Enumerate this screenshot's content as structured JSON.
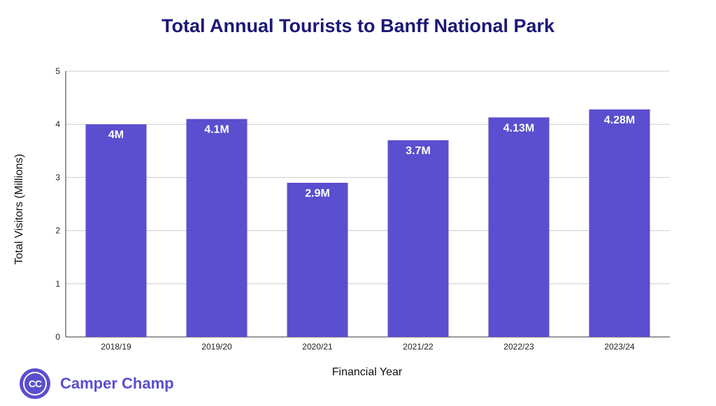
{
  "chart_data": {
    "type": "bar",
    "title": "Total Annual Tourists to Banff National Park",
    "xlabel": "Financial Year",
    "ylabel": "Total Visitors (Millions)",
    "categories": [
      "2018/19",
      "2019/20",
      "2020/21",
      "2021/22",
      "2022/23",
      "2023/24"
    ],
    "values": [
      4,
      4.1,
      2.9,
      3.7,
      4.13,
      4.28
    ],
    "data_labels": [
      "4M",
      "4.1M",
      "2.9M",
      "3.7M",
      "4.13M",
      "4.28M"
    ],
    "ylim": [
      0,
      5
    ],
    "yticks": [
      "0",
      "1",
      "2",
      "3",
      "4",
      "5"
    ],
    "grid": true,
    "bar_color": "#5b4ecf"
  },
  "brand": {
    "logo_text": "CC",
    "name": "Camper Champ",
    "color": "#5b4ecf"
  }
}
